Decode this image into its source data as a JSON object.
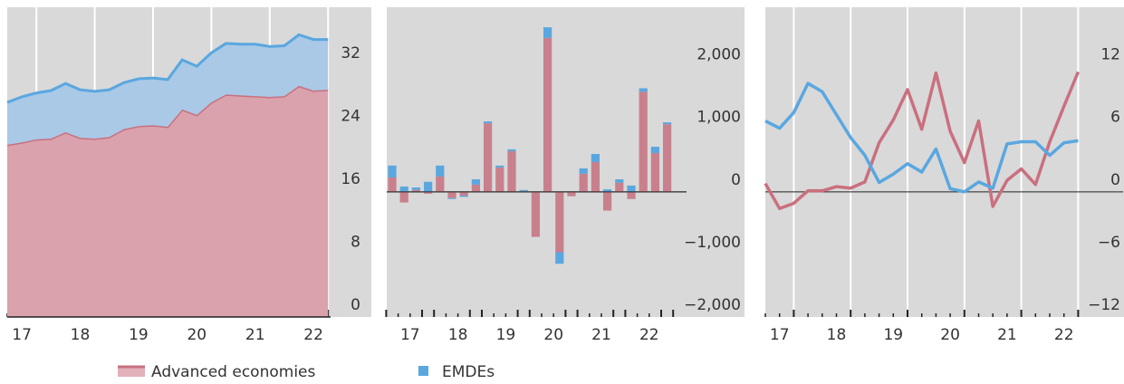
{
  "chart_data": [
    {
      "type": "area",
      "categories": [
        null,
        "17",
        null,
        null,
        null,
        "18",
        null,
        null,
        null,
        "19",
        null,
        null,
        null,
        "20",
        null,
        null,
        null,
        "21",
        null,
        null,
        null,
        "22",
        null
      ],
      "series": [
        {
          "name": "Advanced economies",
          "color": "#c9707f",
          "values": [
            21.9,
            22.2,
            22.6,
            22.7,
            23.5,
            22.8,
            22.7,
            22.9,
            23.9,
            24.3,
            24.4,
            24.2,
            26.4,
            25.7,
            27.3,
            28.3,
            28.2,
            28.1,
            28.0,
            28.1,
            29.4,
            28.8,
            28.9
          ]
        },
        {
          "name": "EMDEs",
          "color": "#5aa7e0",
          "values": [
            5.4,
            5.8,
            5.9,
            6.1,
            6.2,
            6.1,
            6.0,
            6.0,
            5.9,
            6.0,
            6.0,
            6.0,
            6.3,
            6.2,
            6.3,
            6.5,
            6.5,
            6.6,
            6.4,
            6.4,
            6.5,
            6.5,
            6.4
          ]
        }
      ],
      "ylim": [
        0,
        39.4
      ],
      "yticks": [
        0,
        8,
        16,
        24,
        32
      ],
      "grid": false
    },
    {
      "type": "bar",
      "categories": [
        null,
        "17",
        null,
        null,
        null,
        "18",
        null,
        null,
        null,
        "19",
        null,
        null,
        null,
        "20",
        null,
        null,
        null,
        "21",
        null,
        null,
        null,
        "22",
        null,
        null
      ],
      "series": [
        {
          "name": "Advanced economies",
          "color": "#c9707f",
          "values": [
            230,
            -170,
            30,
            -30,
            245,
            -100,
            -60,
            115,
            1095,
            390,
            650,
            10,
            -720,
            2460,
            -965,
            -70,
            290,
            475,
            -300,
            145,
            -115,
            1600,
            620,
            1080
          ]
        },
        {
          "name": "EMDEs",
          "color": "#5aa7e0",
          "values": [
            190,
            85,
            40,
            160,
            175,
            -15,
            -20,
            85,
            30,
            30,
            30,
            20,
            0,
            170,
            -185,
            0,
            85,
            130,
            40,
            55,
            100,
            55,
            100,
            30
          ]
        }
      ],
      "ylim": [
        -2000,
        2950
      ],
      "yticks": [
        {
          "value": -2000,
          "label": "−2,000"
        },
        {
          "value": -1000,
          "label": "−1,000"
        },
        0,
        {
          "value": 1000,
          "label": "1,000"
        },
        {
          "value": 2000,
          "label": "2,000"
        }
      ],
      "grid": false
    },
    {
      "type": "line",
      "categories": [
        null,
        "17",
        null,
        null,
        null,
        "18",
        null,
        null,
        null,
        "19",
        null,
        null,
        null,
        "20",
        null,
        null,
        null,
        "21",
        null,
        null,
        null,
        "22",
        null
      ],
      "series": [
        {
          "name": "Advanced economies",
          "color": "#c9707f",
          "values": [
            0.8,
            -1.6,
            -1.1,
            0.1,
            0.1,
            0.5,
            0.35,
            0.95,
            4.7,
            6.9,
            9.8,
            6.0,
            11.4,
            5.8,
            2.8,
            6.8,
            -1.4,
            1.1,
            2.2,
            0.7,
            4.8,
            8.2,
            11.5
          ]
        },
        {
          "name": "EMDEs",
          "color": "#5aa7e0",
          "values": [
            6.8,
            6.1,
            7.6,
            10.4,
            9.6,
            7.4,
            5.2,
            3.5,
            0.9,
            1.7,
            2.7,
            1.9,
            4.1,
            0.3,
            0,
            0.95,
            0.35,
            4.6,
            4.8,
            4.8,
            3.5,
            4.7,
            4.9
          ]
        }
      ],
      "ylim": [
        -12,
        17.7
      ],
      "yticks": [
        {
          "value": -12,
          "label": "−12"
        },
        {
          "value": -6,
          "label": "−6"
        },
        0,
        6,
        12
      ],
      "grid": false
    }
  ]
}
